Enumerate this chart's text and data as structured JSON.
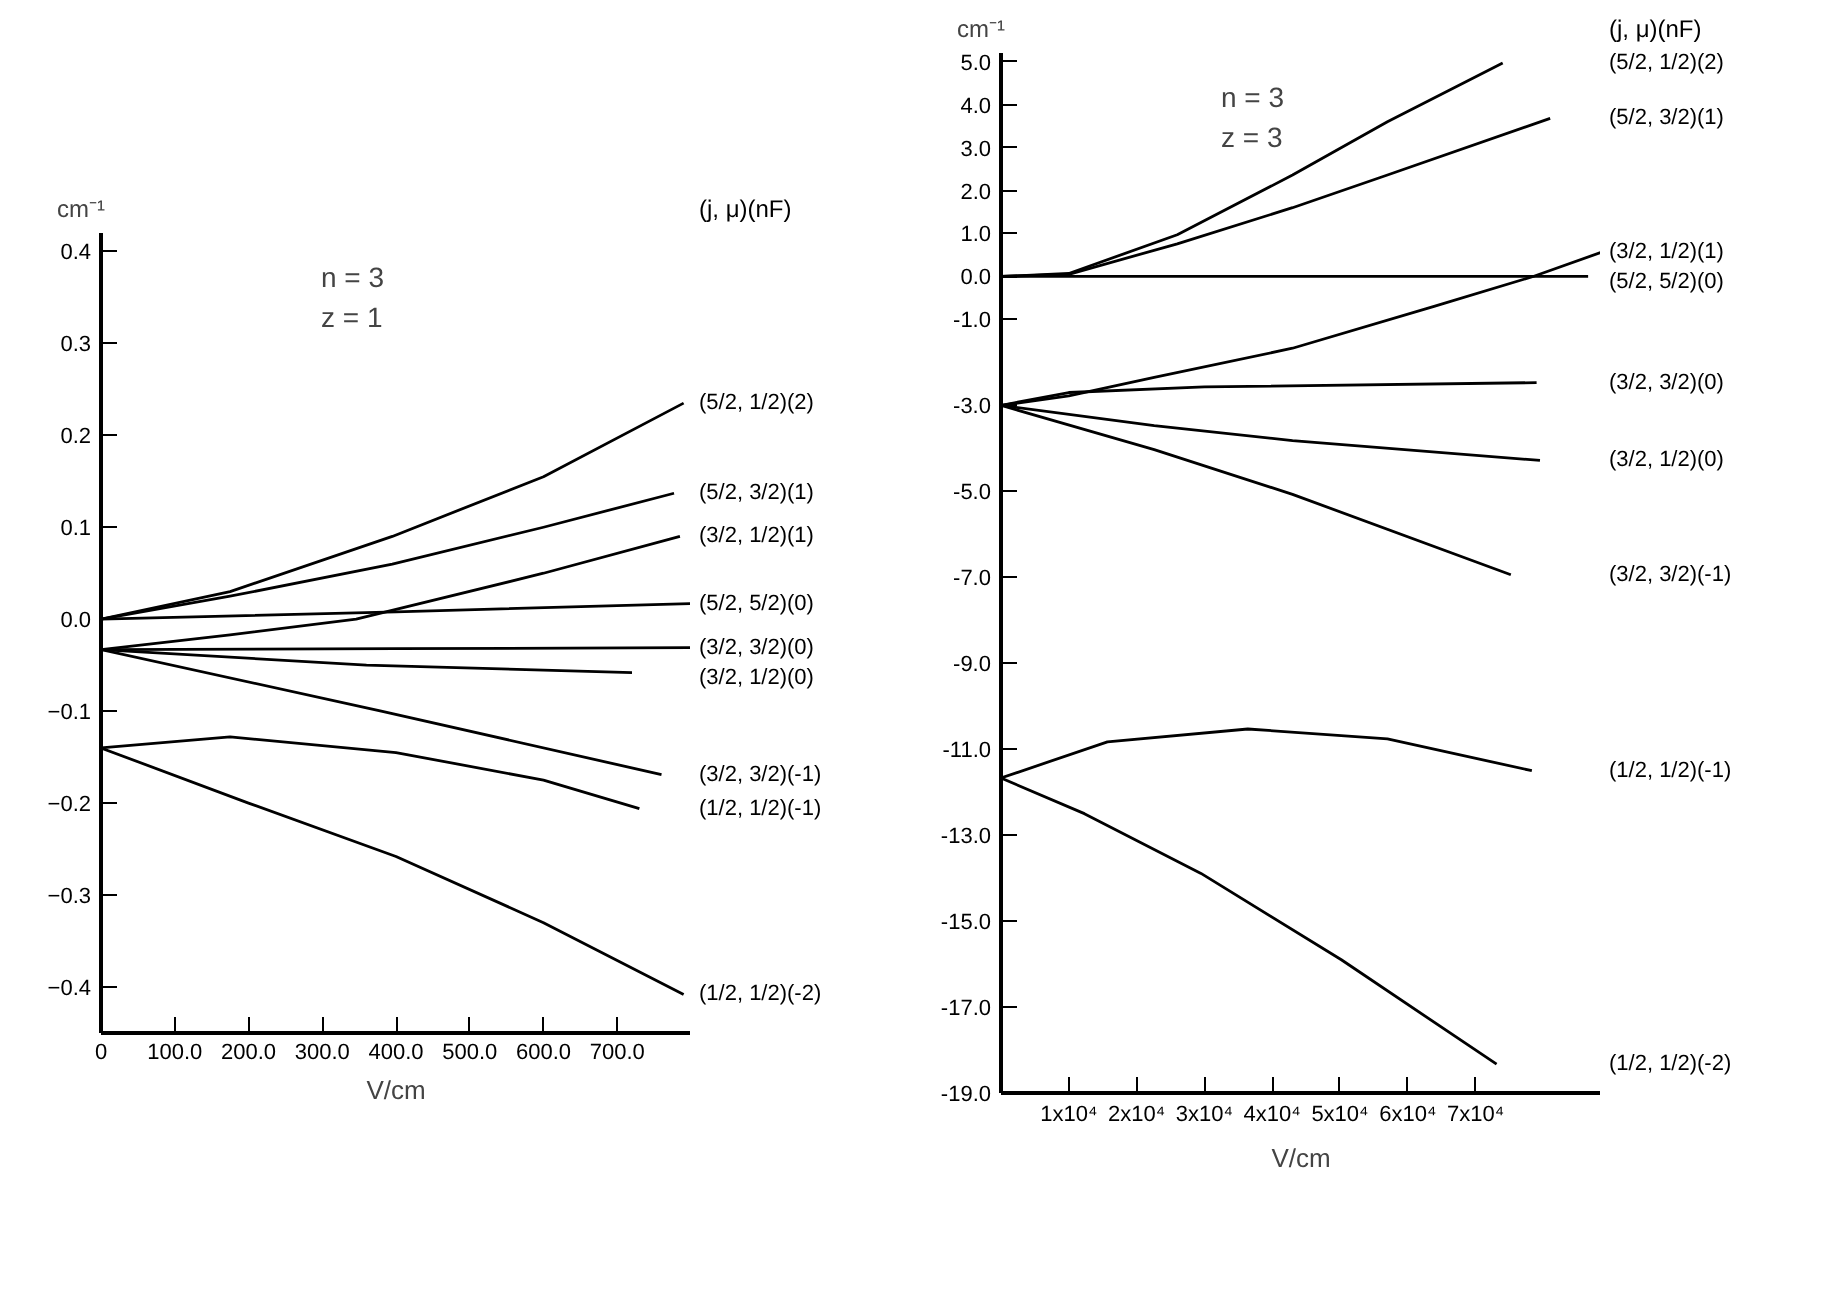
{
  "chart_data": [
    {
      "type": "line",
      "xlabel": "V/cm",
      "ylabel": "cm⁻¹",
      "legend_title": "(j, μ)(nF)",
      "annotations": [
        "n = 3",
        "z = 1"
      ],
      "xlim": [
        0,
        800
      ],
      "ylim": [
        -0.45,
        0.42
      ],
      "xticks": [
        0,
        {
          "value": 100,
          "label": "100.0"
        },
        {
          "value": 200,
          "label": "200.0"
        },
        {
          "value": 300,
          "label": "300.0"
        },
        {
          "value": 400,
          "label": "400.0"
        },
        {
          "value": 500,
          "label": "500.0"
        },
        {
          "value": 600,
          "label": "600.0"
        },
        {
          "value": 700,
          "label": "700.0"
        }
      ],
      "yticks": [
        0.4,
        0.3,
        0.2,
        0.1,
        {
          "value": 0,
          "label": "0.0"
        },
        -0.1,
        -0.2,
        -0.3,
        -0.4
      ],
      "series": [
        {
          "name": "(5/2, 1/2)(2)",
          "color": "#000000",
          "x": [
            0,
            175,
            395,
            600,
            790
          ],
          "values": [
            0,
            0.03,
            0.09,
            0.155,
            0.235
          ]
        },
        {
          "name": "(5/2, 3/2)(1)",
          "color": "#000000",
          "x": [
            0,
            175,
            395,
            600,
            777
          ],
          "values": [
            0,
            0.025,
            0.06,
            0.1,
            0.137
          ]
        },
        {
          "name": "(3/2, 1/2)(1)",
          "color": "#000000",
          "x": [
            0,
            175,
            346,
            600,
            785
          ],
          "values": [
            -0.033,
            -0.017,
            0,
            0.05,
            0.09
          ]
        },
        {
          "name": "(5/2, 5/2)(0)",
          "color": "#000000",
          "x": [
            0,
            400,
            800
          ],
          "values": [
            0,
            0.008,
            0.017
          ]
        },
        {
          "name": "(3/2, 3/2)(0)",
          "color": "#000000",
          "x": [
            0,
            400,
            800
          ],
          "values": [
            -0.033,
            -0.032,
            -0.031
          ]
        },
        {
          "name": "(3/2, 1/2)(0)",
          "color": "#000000",
          "x": [
            0,
            360,
            720
          ],
          "values": [
            -0.033,
            -0.05,
            -0.058
          ]
        },
        {
          "name": "(3/2, 3/2)(-1)",
          "color": "#000000",
          "x": [
            0,
            380,
            760
          ],
          "values": [
            -0.033,
            -0.1,
            -0.169
          ]
        },
        {
          "name": "(1/2, 1/2)(-1)",
          "color": "#000000",
          "x": [
            0,
            175,
            400,
            600,
            730
          ],
          "values": [
            -0.14,
            -0.128,
            -0.145,
            -0.175,
            -0.206
          ]
        },
        {
          "name": "(1/2, 1/2)(-2)",
          "color": "#000000",
          "x": [
            0,
            200,
            400,
            600,
            790
          ],
          "values": [
            -0.14,
            -0.2,
            -0.258,
            -0.33,
            -0.408
          ]
        }
      ]
    },
    {
      "type": "line",
      "xlabel": "V/cm",
      "ylabel": "cm⁻¹",
      "legend_title": "(j, μ)(nF)",
      "annotations": [
        "n = 3",
        "z = 3"
      ],
      "xlim": [
        0,
        88500
      ],
      "ylim": [
        -19,
        5.2
      ],
      "xticks": [
        {
          "value": 10000,
          "label": "1x10⁴"
        },
        {
          "value": 20000,
          "label": "2x10⁴"
        },
        {
          "value": 30000,
          "label": "3x10⁴"
        },
        {
          "value": 40000,
          "label": "4x10⁴"
        },
        {
          "value": 50000,
          "label": "5x10⁴"
        },
        {
          "value": 60000,
          "label": "6x10⁴"
        },
        {
          "value": 70000,
          "label": "7x10⁴"
        }
      ],
      "yticks": [
        {
          "value": 5,
          "label": "5.0"
        },
        {
          "value": 4,
          "label": "4.0"
        },
        {
          "value": 3,
          "label": "3.0"
        },
        {
          "value": 2,
          "label": "2.0"
        },
        {
          "value": 1,
          "label": "1.0"
        },
        {
          "value": 0,
          "label": "0.0"
        },
        {
          "value": -1,
          "label": "-1.0"
        },
        {
          "value": -3,
          "label": "-3.0"
        },
        {
          "value": -5,
          "label": "-5.0"
        },
        {
          "value": -7,
          "label": "-7.0"
        },
        {
          "value": -9,
          "label": "-9.0"
        },
        {
          "value": -11,
          "label": "-11.0"
        },
        {
          "value": -13,
          "label": "-13.0"
        },
        {
          "value": -15,
          "label": "-15.0"
        },
        {
          "value": -17,
          "label": "-17.0"
        },
        {
          "value": -19,
          "label": "-19.0"
        }
      ],
      "series": [
        {
          "name": "(5/2, 1/2)(2)",
          "color": "#000000",
          "x": [
            0,
            10000,
            26000,
            43000,
            57000,
            74000
          ],
          "values": [
            0,
            0.07,
            0.97,
            2.36,
            3.6,
            4.97
          ]
        },
        {
          "name": "(5/2, 3/2)(1)",
          "color": "#000000",
          "x": [
            0,
            10000,
            26000,
            43000,
            57000,
            81000
          ],
          "values": [
            0,
            0.05,
            0.76,
            1.6,
            2.36,
            3.68
          ]
        },
        {
          "name": "(3/2, 1/2)(1)",
          "color": "#000000",
          "x": [
            0,
            10000,
            22600,
            43000,
            64000,
            78500,
            88500
          ],
          "values": [
            -3,
            -2.78,
            -2.35,
            -1.67,
            -0.69,
            0,
            0.56
          ]
        },
        {
          "name": "(5/2, 5/2)(0)",
          "color": "#000000",
          "x": [
            0,
            86600
          ],
          "values": [
            0,
            0
          ]
        },
        {
          "name": "(3/2, 3/2)(0)",
          "color": "#000000",
          "x": [
            0,
            10000,
            30000,
            79000
          ],
          "values": [
            -3,
            -2.7,
            -2.57,
            -2.47
          ]
        },
        {
          "name": "(3/2, 1/2)(0)",
          "color": "#000000",
          "x": [
            0,
            22600,
            43000,
            79500
          ],
          "values": [
            -3,
            -3.47,
            -3.82,
            -4.28
          ]
        },
        {
          "name": "(3/2, 3/2)(-1)",
          "color": "#000000",
          "x": [
            0,
            22600,
            43000,
            75200
          ],
          "values": [
            -3,
            -4.03,
            -5.07,
            -6.94
          ]
        },
        {
          "name": "(1/2, 1/2)(-1)",
          "color": "#000000",
          "x": [
            0,
            15700,
            36400,
            57000,
            78300
          ],
          "values": [
            -11.67,
            -10.83,
            -10.53,
            -10.76,
            -11.5
          ]
        },
        {
          "name": "(1/2, 1/2)(-2)",
          "color": "#000000",
          "x": [
            0,
            12300,
            29500,
            50200,
            73100
          ],
          "values": [
            -11.67,
            -12.5,
            -13.89,
            -15.9,
            -18.33
          ]
        }
      ]
    }
  ]
}
